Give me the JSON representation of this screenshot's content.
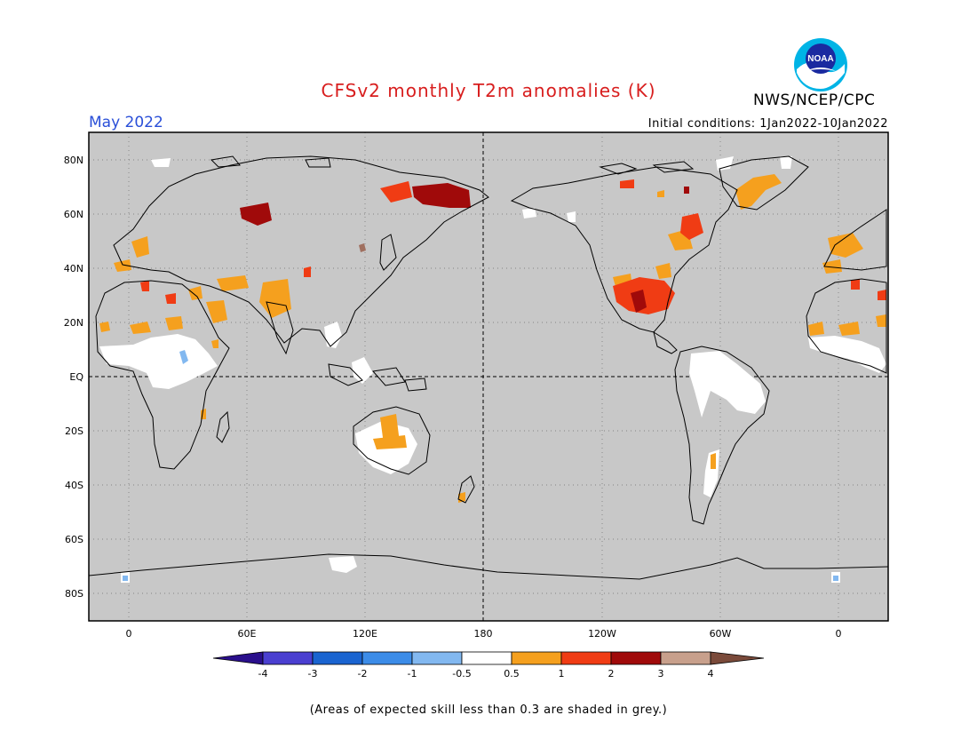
{
  "header": {
    "title": "CFSv2 monthly T2m anomalies (K)",
    "month": "May 2022",
    "initial_conditions": "Initial conditions: 1Jan2022-10Jan2022",
    "organization": "NWS/NCEP/CPC",
    "logo_text": "NOAA"
  },
  "map": {
    "lat_labels": [
      "80N",
      "60N",
      "40N",
      "20N",
      "EQ",
      "20S",
      "40S",
      "60S",
      "80S"
    ],
    "lon_labels": [
      "0",
      "60E",
      "120E",
      "180",
      "120W",
      "60W",
      "0"
    ],
    "background_color": "#c8c8c8",
    "coastline_color": "#000000"
  },
  "colorbar": {
    "tick_labels": [
      "-4",
      "-3",
      "-2",
      "-1",
      "-0.5",
      "0.5",
      "1",
      "2",
      "3",
      "4"
    ],
    "colors": [
      "#2a0f8c",
      "#4a3fd0",
      "#1a64d0",
      "#3c8ce8",
      "#82b8f0",
      "#ffffff",
      "#f5a01e",
      "#f03c14",
      "#a00a0a",
      "#c8a08c",
      "#7a4a3a"
    ]
  },
  "footnote": "(Areas of expected skill less than 0.3 are shaded in grey.)"
}
